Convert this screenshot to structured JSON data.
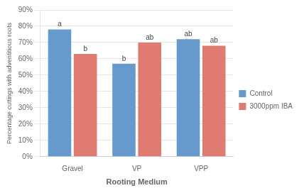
{
  "chart_data": {
    "type": "bar",
    "categories": [
      "Gravel",
      "VP",
      "VPP"
    ],
    "series": [
      {
        "name": "Control",
        "color": "#6699cc",
        "values": [
          0.78,
          0.57,
          0.72
        ]
      },
      {
        "name": "3000ppm IBA",
        "color": "#e07b72",
        "values": [
          0.63,
          0.7,
          0.68
        ]
      }
    ],
    "xlabel": "Rooting Medium",
    "ylabel": "Percentage cuttings with adventitious roots",
    "ylim": [
      0,
      0.9
    ],
    "yticks": [
      {
        "value": 0.0,
        "label": "0%"
      },
      {
        "value": 0.1,
        "label": "10%"
      },
      {
        "value": 0.2,
        "label": "20%"
      },
      {
        "value": 0.3,
        "label": "30%"
      },
      {
        "value": 0.4,
        "label": "40%"
      },
      {
        "value": 0.5,
        "label": "50%"
      },
      {
        "value": 0.6,
        "label": "60%"
      },
      {
        "value": 0.7,
        "label": "70%"
      },
      {
        "value": 0.8,
        "label": "80%"
      },
      {
        "value": 0.9,
        "label": "90%"
      }
    ],
    "annotations": [
      {
        "series": "Control",
        "category": "Gravel",
        "text": "a"
      },
      {
        "series": "Control",
        "category": "VP",
        "text": "b"
      },
      {
        "series": "Control",
        "category": "VPP",
        "text": "ab"
      },
      {
        "series": "3000ppm IBA",
        "category": "Gravel",
        "text": "b"
      },
      {
        "series": "3000ppm IBA",
        "category": "VP",
        "text": "ab"
      },
      {
        "series": "3000ppm IBA",
        "category": "VPP",
        "text": "ab"
      }
    ],
    "grid": true,
    "legend": "right"
  }
}
